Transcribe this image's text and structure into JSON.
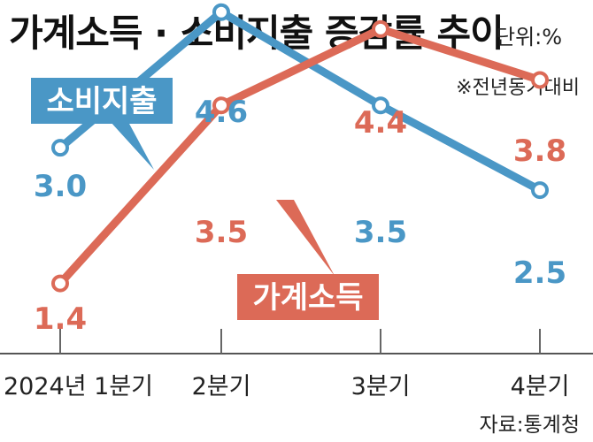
{
  "header": {
    "title": "가계소득 · 소비지출 증감률 추이",
    "unit": "단위:%",
    "note": "※전년동기대비"
  },
  "footer": {
    "source": "자료:통계청"
  },
  "colors": {
    "spending": "#4a97c6",
    "income": "#dc6a57"
  },
  "chart_data": {
    "type": "line",
    "categories": [
      "2024년 1분기",
      "2분기",
      "3분기",
      "4분기"
    ],
    "series": [
      {
        "name": "소비지출",
        "values": [
          3.0,
          4.6,
          3.5,
          2.5
        ],
        "value_labels": [
          "3.0",
          "4.6",
          "3.5",
          "2.5"
        ],
        "color": "#4a97c6"
      },
      {
        "name": "가계소득",
        "values": [
          1.4,
          3.5,
          4.4,
          3.8
        ],
        "value_labels": [
          "1.4",
          "3.5",
          "4.4",
          "3.8"
        ],
        "color": "#dc6a57"
      }
    ],
    "ylim": [
      0.5,
      5.2
    ],
    "grid": false,
    "legend": "callouts",
    "title": "가계소득 · 소비지출 증감률 추이",
    "xlabel": "",
    "ylabel": ""
  }
}
